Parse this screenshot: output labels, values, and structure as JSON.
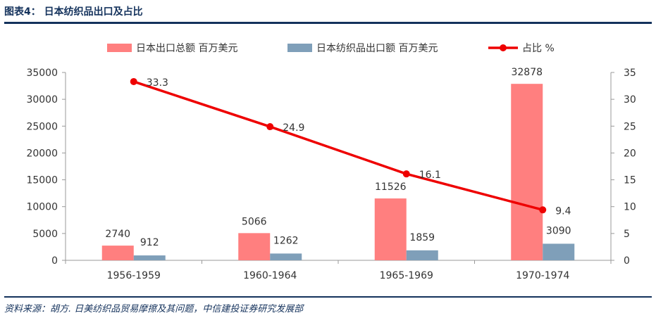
{
  "header": {
    "title": "图表4：  日本纺织品出口及占比"
  },
  "source": "资料来源：胡方. 日美纺织品贸易摩擦及其问题，中信建投证券研究发展部",
  "chart_data": {
    "type": "bar",
    "title": "日本纺织品出口及占比",
    "categories": [
      "1956-1959",
      "1960-1964",
      "1965-1969",
      "1970-1974"
    ],
    "series": [
      {
        "name": "日本出口总额  百万美元",
        "type": "bar",
        "axis": "left",
        "color": "#ff7f7f",
        "values": [
          2740,
          5066,
          11526,
          32878
        ]
      },
      {
        "name": "日本纺织品出口额  百万美元",
        "type": "bar",
        "axis": "left",
        "color": "#7f9fb9",
        "values": [
          912,
          1262,
          1859,
          3090
        ]
      },
      {
        "name": "占比  %",
        "type": "line",
        "axis": "right",
        "color": "#ee0000",
        "values": [
          33.3,
          24.9,
          16.1,
          9.4
        ]
      }
    ],
    "y_left": {
      "min": 0,
      "max": 35000,
      "ticks": [
        0,
        5000,
        10000,
        15000,
        20000,
        25000,
        30000,
        35000
      ]
    },
    "y_right": {
      "min": 0,
      "max": 35,
      "ticks": [
        0,
        5,
        10,
        15,
        20,
        25,
        30,
        35
      ]
    },
    "legend_position": "top",
    "grid": false
  }
}
